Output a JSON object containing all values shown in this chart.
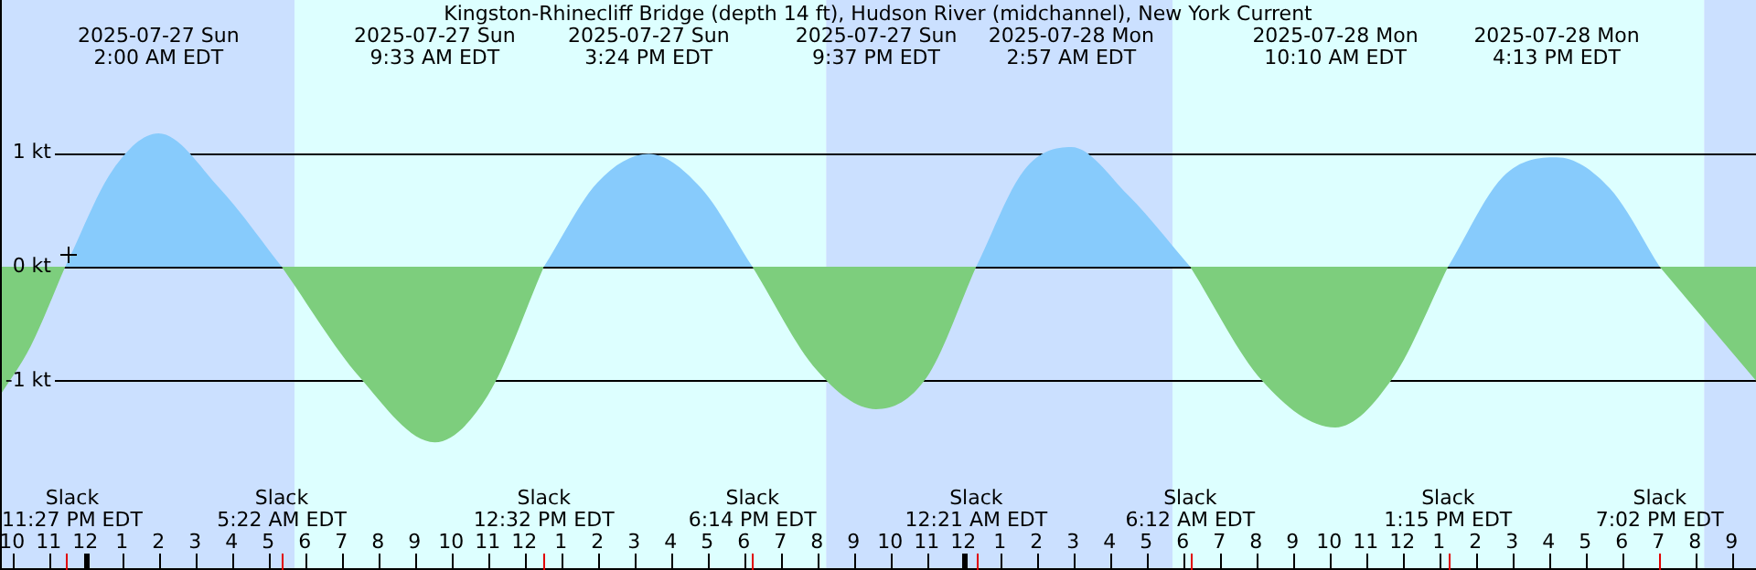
{
  "chart_data": {
    "type": "area",
    "title": "Kingston-Rhinecliff Bridge (depth 14 ft), Hudson River (midchannel), New York Current",
    "x": [
      "2025-07-26T21:40",
      "2025-07-26T22:30",
      "2025-07-26T23:27",
      "2025-07-27T00:45",
      "2025-07-27T02:00",
      "2025-07-27T03:40",
      "2025-07-27T05:22",
      "2025-07-27T07:30",
      "2025-07-27T09:33",
      "2025-07-27T11:00",
      "2025-07-27T12:32",
      "2025-07-27T14:00",
      "2025-07-27T15:24",
      "2025-07-27T16:50",
      "2025-07-27T18:14",
      "2025-07-27T20:00",
      "2025-07-27T21:37",
      "2025-07-27T23:00",
      "2025-07-28T00:21",
      "2025-07-28T01:40",
      "2025-07-28T02:57",
      "2025-07-28T04:30",
      "2025-07-28T06:12",
      "2025-07-28T08:10",
      "2025-07-28T10:10",
      "2025-07-28T11:45",
      "2025-07-28T13:15",
      "2025-07-28T14:45",
      "2025-07-28T16:13",
      "2025-07-28T17:40",
      "2025-07-28T19:02",
      "2025-07-28T21:40"
    ],
    "series": [
      {
        "color": "#87cbfc",
        "values": [
          null,
          null,
          0,
          0.85,
          1.17,
          0.69,
          0,
          null,
          null,
          null,
          0,
          0.74,
          0.99,
          0.69,
          0,
          null,
          null,
          null,
          0,
          0.85,
          1.05,
          0.63,
          0,
          null,
          null,
          null,
          0,
          0.79,
          0.96,
          0.69,
          0,
          null
        ]
      },
      {
        "color": "#7dce7d",
        "values": [
          -1.13,
          -0.7,
          0,
          null,
          null,
          null,
          0,
          -0.97,
          -1.54,
          -1.13,
          0,
          null,
          null,
          null,
          0,
          -0.91,
          -1.25,
          -0.97,
          0,
          null,
          null,
          null,
          0,
          -1.0,
          -1.41,
          -0.97,
          0,
          null,
          null,
          null,
          0,
          -1.0
        ]
      }
    ],
    "xticks": [
      {
        "value": "2025-07-26T22:00",
        "label": "10"
      },
      {
        "value": "2025-07-26T23:00",
        "label": "11"
      },
      {
        "value": "2025-07-27T00:00",
        "label": "12"
      },
      {
        "value": "2025-07-27T01:00",
        "label": "1"
      },
      {
        "value": "2025-07-27T02:00",
        "label": "2"
      },
      {
        "value": "2025-07-27T03:00",
        "label": "3"
      },
      {
        "value": "2025-07-27T04:00",
        "label": "4"
      },
      {
        "value": "2025-07-27T05:00",
        "label": "5"
      },
      {
        "value": "2025-07-27T06:00",
        "label": "6"
      },
      {
        "value": "2025-07-27T07:00",
        "label": "7"
      },
      {
        "value": "2025-07-27T08:00",
        "label": "8"
      },
      {
        "value": "2025-07-27T09:00",
        "label": "9"
      },
      {
        "value": "2025-07-27T10:00",
        "label": "10"
      },
      {
        "value": "2025-07-27T11:00",
        "label": "11"
      },
      {
        "value": "2025-07-27T12:00",
        "label": "12"
      },
      {
        "value": "2025-07-27T13:00",
        "label": "1"
      },
      {
        "value": "2025-07-27T14:00",
        "label": "2"
      },
      {
        "value": "2025-07-27T15:00",
        "label": "3"
      },
      {
        "value": "2025-07-27T16:00",
        "label": "4"
      },
      {
        "value": "2025-07-27T17:00",
        "label": "5"
      },
      {
        "value": "2025-07-27T18:00",
        "label": "6"
      },
      {
        "value": "2025-07-27T19:00",
        "label": "7"
      },
      {
        "value": "2025-07-27T20:00",
        "label": "8"
      },
      {
        "value": "2025-07-27T21:00",
        "label": "9"
      },
      {
        "value": "2025-07-27T22:00",
        "label": "10"
      },
      {
        "value": "2025-07-27T23:00",
        "label": "11"
      },
      {
        "value": "2025-07-28T00:00",
        "label": "12"
      },
      {
        "value": "2025-07-28T01:00",
        "label": "1"
      },
      {
        "value": "2025-07-28T02:00",
        "label": "2"
      },
      {
        "value": "2025-07-28T03:00",
        "label": "3"
      },
      {
        "value": "2025-07-28T04:00",
        "label": "4"
      },
      {
        "value": "2025-07-28T05:00",
        "label": "5"
      },
      {
        "value": "2025-07-28T06:00",
        "label": "6"
      },
      {
        "value": "2025-07-28T07:00",
        "label": "7"
      },
      {
        "value": "2025-07-28T08:00",
        "label": "8"
      },
      {
        "value": "2025-07-28T09:00",
        "label": "9"
      },
      {
        "value": "2025-07-28T10:00",
        "label": "10"
      },
      {
        "value": "2025-07-28T11:00",
        "label": "11"
      },
      {
        "value": "2025-07-28T12:00",
        "label": "12"
      },
      {
        "value": "2025-07-28T13:00",
        "label": "1"
      },
      {
        "value": "2025-07-28T14:00",
        "label": "2"
      },
      {
        "value": "2025-07-28T15:00",
        "label": "3"
      },
      {
        "value": "2025-07-28T16:00",
        "label": "4"
      },
      {
        "value": "2025-07-28T17:00",
        "label": "5"
      },
      {
        "value": "2025-07-28T18:00",
        "label": "6"
      },
      {
        "value": "2025-07-28T19:00",
        "label": "7"
      },
      {
        "value": "2025-07-28T20:00",
        "label": "8"
      },
      {
        "value": "2025-07-28T21:00",
        "label": "9"
      }
    ],
    "xlim": [
      "2025-07-26T21:40",
      "2025-07-28T21:40"
    ],
    "ylim": [
      -2.66,
      2.34
    ],
    "yticks": [
      {
        "value": 1,
        "label": "1 kt"
      },
      {
        "value": 0,
        "label": "0 kt"
      },
      {
        "value": -1,
        "label": "-1 kt"
      }
    ],
    "grid": "y",
    "bands": [
      {
        "axis": "x",
        "from": "2025-07-26T21:40",
        "to": "2025-07-27T05:43",
        "color": "#cbe0ff"
      },
      {
        "axis": "x",
        "from": "2025-07-27T05:43",
        "to": "2025-07-27T20:15",
        "color": "#ddffff"
      },
      {
        "axis": "x",
        "from": "2025-07-27T20:15",
        "to": "2025-07-28T05:43",
        "color": "#cbe0ff"
      },
      {
        "axis": "x",
        "from": "2025-07-28T05:43",
        "to": "2025-07-28T20:15",
        "color": "#ddffff"
      },
      {
        "axis": "x",
        "from": "2025-07-28T20:15",
        "to": "2025-07-28T21:40",
        "color": "#cbe0ff"
      }
    ],
    "annotations": [
      "2025-07-27 Sun\n2:00 AM EDT",
      "2025-07-27 Sun\n9:33 AM EDT",
      "2025-07-27 Sun\n3:24 PM EDT",
      "2025-07-27 Sun\n9:37 PM EDT",
      "2025-07-28 Mon\n2:57 AM EDT",
      "2025-07-28 Mon\n10:10 AM EDT",
      "2025-07-28 Mon\n4:13 PM EDT",
      "Slack\n11:27 PM EDT",
      "Slack\n5:22 AM EDT",
      "Slack\n12:32 PM EDT",
      "Slack\n6:14 PM EDT",
      "Slack\n12:21 AM EDT",
      "Slack\n6:12 AM EDT",
      "Slack\n1:15 PM EDT",
      "Slack\n7:02 PM EDT"
    ]
  }
}
